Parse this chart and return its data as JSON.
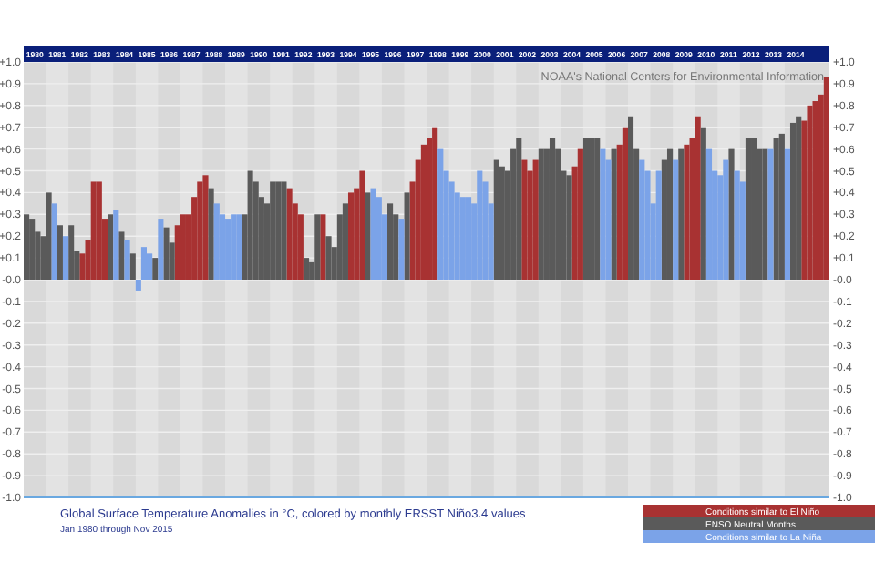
{
  "chart_data": {
    "type": "bar",
    "title": "Global Surface Temperature Anomalies in °C, colored by monthly ERSST Niño3.4 values",
    "subtitle": "Jan 1980 through Nov 2015",
    "annotations": [
      "NOAA's National Centers for Environmental Information"
    ],
    "x": [
      "1980-01",
      "1980-04",
      "1980-07",
      "1980-10",
      "1981-01",
      "1981-04",
      "1981-07",
      "1981-10",
      "1982-01",
      "1982-04",
      "1982-07",
      "1982-10",
      "1983-01",
      "1983-04",
      "1983-07",
      "1983-10",
      "1984-01",
      "1984-04",
      "1984-07",
      "1984-10",
      "1985-01",
      "1985-04",
      "1985-07",
      "1985-10",
      "1986-01",
      "1986-04",
      "1986-07",
      "1986-10",
      "1987-01",
      "1987-04",
      "1987-07",
      "1987-10",
      "1988-01",
      "1988-04",
      "1988-07",
      "1988-10",
      "1989-01",
      "1989-04",
      "1989-07",
      "1989-10",
      "1990-01",
      "1990-04",
      "1990-07",
      "1990-10",
      "1991-01",
      "1991-04",
      "1991-07",
      "1991-10",
      "1992-01",
      "1992-04",
      "1992-07",
      "1992-10",
      "1993-01",
      "1993-04",
      "1993-07",
      "1993-10",
      "1994-01",
      "1994-04",
      "1994-07",
      "1994-10",
      "1995-01",
      "1995-04",
      "1995-07",
      "1995-10",
      "1996-01",
      "1996-04",
      "1996-07",
      "1996-10",
      "1997-01",
      "1997-04",
      "1997-07",
      "1997-10",
      "1998-01",
      "1998-04",
      "1998-07",
      "1998-10",
      "1999-01",
      "1999-04",
      "1999-07",
      "1999-10",
      "2000-01",
      "2000-04",
      "2000-07",
      "2000-10",
      "2001-01",
      "2001-04",
      "2001-07",
      "2001-10",
      "2002-01",
      "2002-04",
      "2002-07",
      "2002-10",
      "2003-01",
      "2003-04",
      "2003-07",
      "2003-10",
      "2004-01",
      "2004-04",
      "2004-07",
      "2004-10",
      "2005-01",
      "2005-04",
      "2005-07",
      "2005-10",
      "2006-01",
      "2006-04",
      "2006-07",
      "2006-10",
      "2007-01",
      "2007-04",
      "2007-07",
      "2007-10",
      "2008-01",
      "2008-04",
      "2008-07",
      "2008-10",
      "2009-01",
      "2009-04",
      "2009-07",
      "2009-10",
      "2010-01",
      "2010-04",
      "2010-07",
      "2010-10",
      "2011-01",
      "2011-04",
      "2011-07",
      "2011-10",
      "2012-01",
      "2012-04",
      "2012-07",
      "2012-10",
      "2013-01",
      "2013-04",
      "2013-07",
      "2013-10",
      "2014-01",
      "2014-04",
      "2014-07",
      "2014-10",
      "2015-01",
      "2015-04",
      "2015-07",
      "2015-10"
    ],
    "series": [
      {
        "name": "Conditions similar to El Niño",
        "color": "#a83232",
        "values": [
          null,
          null,
          null,
          null,
          null,
          null,
          null,
          null,
          null,
          null,
          0.12,
          0.18,
          0.45,
          0.45,
          0.28,
          null,
          null,
          null,
          null,
          null,
          null,
          null,
          null,
          null,
          null,
          null,
          null,
          0.25,
          0.3,
          0.3,
          0.38,
          0.45,
          0.48,
          null,
          null,
          null,
          null,
          null,
          null,
          null,
          null,
          null,
          null,
          null,
          null,
          null,
          null,
          0.42,
          0.35,
          0.3,
          null,
          null,
          null,
          0.3,
          null,
          null,
          null,
          null,
          0.4,
          0.42,
          0.5,
          null,
          null,
          null,
          null,
          null,
          null,
          null,
          null,
          0.45,
          0.55,
          0.62,
          0.65,
          0.7,
          null,
          null,
          null,
          null,
          null,
          null,
          null,
          null,
          null,
          null,
          null,
          null,
          null,
          null,
          null,
          0.55,
          0.5,
          0.55,
          null,
          null,
          null,
          null,
          null,
          null,
          0.52,
          0.6,
          null,
          null,
          null,
          null,
          null,
          null,
          0.62,
          0.7,
          null,
          null,
          null,
          null,
          null,
          null,
          null,
          null,
          null,
          null,
          0.62,
          0.65,
          0.75,
          null,
          null,
          null,
          null,
          null,
          null,
          null,
          null,
          null,
          null,
          null,
          null,
          null,
          null,
          null,
          null,
          null,
          null,
          0.73,
          0.8,
          0.82,
          0.85,
          0.93
        ]
      },
      {
        "name": "ENSO Neutral Months",
        "color": "#5a5a5a",
        "values": [
          0.3,
          0.28,
          0.22,
          0.2,
          0.4,
          null,
          0.25,
          null,
          0.25,
          0.13,
          null,
          null,
          null,
          null,
          null,
          0.3,
          null,
          0.22,
          null,
          0.12,
          null,
          null,
          null,
          0.1,
          null,
          0.24,
          0.17,
          null,
          null,
          null,
          null,
          null,
          null,
          0.42,
          null,
          null,
          null,
          null,
          null,
          0.3,
          0.5,
          0.45,
          0.38,
          0.35,
          0.45,
          0.45,
          0.45,
          null,
          null,
          null,
          0.1,
          0.08,
          0.3,
          null,
          0.2,
          0.15,
          0.3,
          0.35,
          null,
          null,
          null,
          0.4,
          null,
          null,
          null,
          0.35,
          0.3,
          null,
          0.4,
          null,
          null,
          null,
          null,
          null,
          null,
          null,
          null,
          null,
          null,
          null,
          null,
          null,
          null,
          null,
          0.55,
          0.52,
          0.5,
          0.6,
          0.65,
          null,
          null,
          null,
          0.6,
          0.6,
          0.65,
          0.6,
          0.5,
          0.48,
          null,
          null,
          0.65,
          0.65,
          0.65,
          null,
          null,
          0.6,
          null,
          null,
          0.75,
          0.6,
          null,
          null,
          null,
          null,
          0.55,
          0.6,
          null,
          0.6,
          null,
          null,
          null,
          0.7,
          null,
          null,
          null,
          null,
          0.6,
          null,
          null,
          0.65,
          0.65,
          0.6,
          0.6,
          null,
          0.65,
          0.67,
          null,
          0.72,
          0.75,
          null,
          null,
          null,
          null,
          null
        ]
      },
      {
        "name": "Conditions similar to La Niña",
        "color": "#7ba3e8",
        "values": [
          null,
          null,
          null,
          null,
          null,
          0.35,
          null,
          0.2,
          null,
          null,
          null,
          null,
          null,
          null,
          null,
          null,
          0.32,
          null,
          0.18,
          null,
          -0.05,
          0.15,
          0.12,
          null,
          0.28,
          null,
          null,
          null,
          null,
          null,
          null,
          null,
          null,
          null,
          0.35,
          0.3,
          0.28,
          0.3,
          0.3,
          null,
          null,
          null,
          null,
          null,
          null,
          null,
          null,
          null,
          null,
          null,
          null,
          null,
          null,
          null,
          null,
          null,
          null,
          null,
          null,
          null,
          null,
          null,
          0.42,
          0.38,
          0.3,
          null,
          null,
          0.28,
          null,
          null,
          null,
          null,
          null,
          null,
          0.6,
          0.5,
          0.45,
          0.4,
          0.38,
          0.38,
          0.35,
          0.5,
          0.45,
          0.35,
          null,
          null,
          null,
          null,
          null,
          null,
          null,
          null,
          null,
          null,
          null,
          null,
          null,
          null,
          null,
          null,
          null,
          null,
          null,
          0.6,
          0.55,
          null,
          null,
          null,
          null,
          null,
          0.55,
          0.5,
          0.35,
          0.5,
          null,
          null,
          0.55,
          null,
          null,
          null,
          null,
          null,
          0.6,
          0.5,
          0.48,
          0.55,
          null,
          0.5,
          0.45,
          null,
          null,
          null,
          null,
          0.6,
          null,
          null,
          0.6,
          null,
          null,
          null,
          null,
          null,
          null,
          null
        ]
      }
    ],
    "xlim": [
      "1980-01",
      "2016-01"
    ],
    "xticks": [
      {
        "value": "1980-07",
        "label": "1980"
      },
      {
        "value": "1981-07",
        "label": "1981"
      },
      {
        "value": "1982-07",
        "label": "1982"
      },
      {
        "value": "1983-07",
        "label": "1983"
      },
      {
        "value": "1984-07",
        "label": "1984"
      },
      {
        "value": "1985-07",
        "label": "1985"
      },
      {
        "value": "1986-07",
        "label": "1986"
      },
      {
        "value": "1987-07",
        "label": "1987"
      },
      {
        "value": "1988-07",
        "label": "1988"
      },
      {
        "value": "1989-07",
        "label": "1989"
      },
      {
        "value": "1990-07",
        "label": "1990"
      },
      {
        "value": "1991-07",
        "label": "1991"
      },
      {
        "value": "1992-07",
        "label": "1992"
      },
      {
        "value": "1993-07",
        "label": "1993"
      },
      {
        "value": "1994-07",
        "label": "1994"
      },
      {
        "value": "1995-07",
        "label": "1995"
      },
      {
        "value": "1996-07",
        "label": "1996"
      },
      {
        "value": "1997-07",
        "label": "1997"
      },
      {
        "value": "1998-07",
        "label": "1998"
      },
      {
        "value": "1999-07",
        "label": "1999"
      },
      {
        "value": "2000-07",
        "label": "2000"
      },
      {
        "value": "2001-07",
        "label": "2001"
      },
      {
        "value": "2002-07",
        "label": "2002"
      },
      {
        "value": "2003-07",
        "label": "2003"
      },
      {
        "value": "2004-07",
        "label": "2004"
      },
      {
        "value": "2005-07",
        "label": "2005"
      },
      {
        "value": "2006-07",
        "label": "2006"
      },
      {
        "value": "2007-07",
        "label": "2007"
      },
      {
        "value": "2008-07",
        "label": "2008"
      },
      {
        "value": "2009-07",
        "label": "2009"
      },
      {
        "value": "2010-07",
        "label": "2010"
      },
      {
        "value": "2011-07",
        "label": "2011"
      },
      {
        "value": "2012-07",
        "label": "2012"
      },
      {
        "value": "2013-07",
        "label": "2013"
      },
      {
        "value": "2014-07",
        "label": "2014"
      }
    ],
    "ylim": [
      -1,
      1
    ],
    "yticks": [
      {
        "value": 1,
        "label": "+1.0"
      },
      {
        "value": 0.9,
        "label": "+0.9"
      },
      {
        "value": 0.8,
        "label": "+0.8"
      },
      {
        "value": 0.7,
        "label": "+0.7"
      },
      {
        "value": 0.6,
        "label": "+0.6"
      },
      {
        "value": 0.5,
        "label": "+0.5"
      },
      {
        "value": 0.4,
        "label": "+0.4"
      },
      {
        "value": 0.3,
        "label": "+0.3"
      },
      {
        "value": 0.2,
        "label": "+0.2"
      },
      {
        "value": 0.1,
        "label": "+0.1"
      },
      {
        "value": 0,
        "label": "-0.0"
      },
      {
        "value": -0.1,
        "label": "-0.1"
      },
      {
        "value": -0.2,
        "label": "-0.2"
      },
      {
        "value": -0.3,
        "label": "-0.3"
      },
      {
        "value": -0.4,
        "label": "-0.4"
      },
      {
        "value": -0.5,
        "label": "-0.5"
      },
      {
        "value": -0.6,
        "label": "-0.6"
      },
      {
        "value": -0.7,
        "label": "-0.7"
      },
      {
        "value": -0.8,
        "label": "-0.8"
      },
      {
        "value": -0.9,
        "label": "-0.9"
      },
      {
        "value": -1,
        "label": "-1.0"
      }
    ],
    "y2lim": [
      -1,
      1
    ],
    "y2ticks": [
      {
        "value": 1,
        "label": "+1.0"
      },
      {
        "value": 0.9,
        "label": "+0.9"
      },
      {
        "value": 0.8,
        "label": "+0.8"
      },
      {
        "value": 0.7,
        "label": "+0.7"
      },
      {
        "value": 0.6,
        "label": "+0.6"
      },
      {
        "value": 0.5,
        "label": "+0.5"
      },
      {
        "value": 0.4,
        "label": "+0.4"
      },
      {
        "value": 0.3,
        "label": "+0.3"
      },
      {
        "value": 0.2,
        "label": "+0.2"
      },
      {
        "value": 0.1,
        "label": "+0.1"
      },
      {
        "value": 0,
        "label": "-0.0"
      },
      {
        "value": -0.1,
        "label": "-0.1"
      },
      {
        "value": -0.2,
        "label": "-0.2"
      },
      {
        "value": -0.3,
        "label": "-0.3"
      },
      {
        "value": -0.4,
        "label": "-0.4"
      },
      {
        "value": -0.5,
        "label": "-0.5"
      },
      {
        "value": -0.6,
        "label": "-0.6"
      },
      {
        "value": -0.7,
        "label": "-0.7"
      },
      {
        "value": -0.8,
        "label": "-0.8"
      },
      {
        "value": -0.9,
        "label": "-0.9"
      },
      {
        "value": -1,
        "label": "-1.0"
      }
    ],
    "bands": [
      {
        "axis": "x",
        "from": "1981-01",
        "to": "1982-01",
        "color": "#e3e3e3"
      },
      {
        "axis": "x",
        "from": "1983-01",
        "to": "1984-01",
        "color": "#e3e3e3"
      },
      {
        "axis": "x",
        "from": "1985-01",
        "to": "1986-01",
        "color": "#e3e3e3"
      },
      {
        "axis": "x",
        "from": "1987-01",
        "to": "1988-01",
        "color": "#e3e3e3"
      },
      {
        "axis": "x",
        "from": "1989-01",
        "to": "1990-01",
        "color": "#e3e3e3"
      },
      {
        "axis": "x",
        "from": "1991-01",
        "to": "1992-01",
        "color": "#e3e3e3"
      },
      {
        "axis": "x",
        "from": "1993-01",
        "to": "1994-01",
        "color": "#e3e3e3"
      },
      {
        "axis": "x",
        "from": "1995-01",
        "to": "1996-01",
        "color": "#e3e3e3"
      },
      {
        "axis": "x",
        "from": "1997-01",
        "to": "1998-01",
        "color": "#e3e3e3"
      },
      {
        "axis": "x",
        "from": "1999-01",
        "to": "2000-01",
        "color": "#e3e3e3"
      },
      {
        "axis": "x",
        "from": "2001-01",
        "to": "2002-01",
        "color": "#e3e3e3"
      },
      {
        "axis": "x",
        "from": "2003-01",
        "to": "2004-01",
        "color": "#e3e3e3"
      },
      {
        "axis": "x",
        "from": "2005-01",
        "to": "2006-01",
        "color": "#e3e3e3"
      },
      {
        "axis": "x",
        "from": "2007-01",
        "to": "2008-01",
        "color": "#e3e3e3"
      },
      {
        "axis": "x",
        "from": "2009-01",
        "to": "2010-01",
        "color": "#e3e3e3"
      },
      {
        "axis": "x",
        "from": "2011-01",
        "to": "2012-01",
        "color": "#e3e3e3"
      },
      {
        "axis": "x",
        "from": "2013-01",
        "to": "2014-01",
        "color": "#e3e3e3"
      }
    ],
    "grid": "y",
    "legend": "bottom right"
  }
}
